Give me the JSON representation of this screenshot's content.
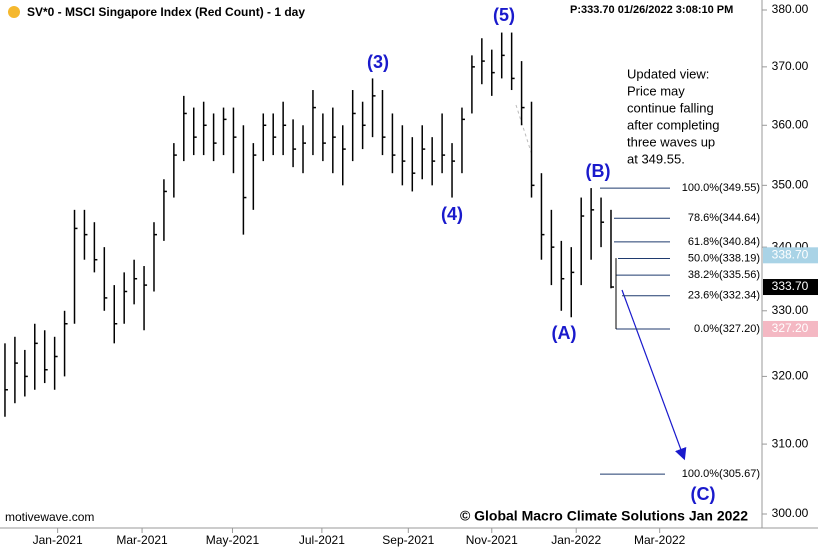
{
  "chart_data": {
    "type": "ohlc",
    "title": "SV*0 - MSCI Singapore Index (Red Count) - 1 day",
    "price_info": "P:333.70  01/26/2022 3:08:10 PM",
    "color": "#000000",
    "log_scale": true,
    "ylim": [
      300,
      380
    ],
    "yticks": [
      {
        "value": 380,
        "label": "380.00"
      },
      {
        "value": 370,
        "label": "370.00"
      },
      {
        "value": 360,
        "label": "360.00"
      },
      {
        "value": 350,
        "label": "350.00"
      },
      {
        "value": 340,
        "label": "340.00"
      },
      {
        "value": 330,
        "label": "330.00"
      },
      {
        "value": 320,
        "label": "320.00"
      },
      {
        "value": 310,
        "label": "310.00"
      },
      {
        "value": 300,
        "label": "300.00"
      }
    ],
    "xlim": [
      0,
      76.7
    ],
    "xticks": [
      {
        "value": 5.8,
        "label": "Jan-2021"
      },
      {
        "value": 14.3,
        "label": "Mar-2021"
      },
      {
        "value": 23.4,
        "label": "May-2021"
      },
      {
        "value": 32.4,
        "label": "Jul-2021"
      },
      {
        "value": 41.1,
        "label": "Sep-2021"
      },
      {
        "value": 49.5,
        "label": "Nov-2021"
      },
      {
        "value": 58.0,
        "label": "Jan-2022"
      },
      {
        "value": 66.4,
        "label": "Mar-2022"
      }
    ],
    "high": [
      325,
      326,
      324,
      328,
      327,
      326,
      330,
      346,
      346,
      344,
      340,
      334,
      336,
      338,
      337,
      344,
      351,
      357,
      365,
      363,
      364,
      362,
      363,
      363,
      360,
      357,
      362,
      362,
      364,
      361,
      360,
      366,
      362,
      363,
      360,
      366,
      364,
      368,
      366,
      362,
      360,
      358,
      360,
      358,
      362,
      357,
      363,
      372,
      375,
      373,
      376,
      376,
      371,
      364,
      352,
      346,
      341,
      340,
      348,
      349.55,
      348,
      346
    ],
    "low": [
      314,
      316,
      317,
      318,
      319,
      318,
      320,
      328,
      338,
      336,
      330,
      325,
      328,
      331,
      327,
      333,
      341,
      348,
      354,
      355,
      355,
      354,
      355,
      352,
      342,
      346,
      354,
      355,
      355,
      353,
      352,
      355,
      354,
      352,
      350,
      354,
      356,
      358,
      355,
      352,
      350,
      349,
      351,
      350,
      352,
      348,
      352,
      362,
      367,
      365,
      368,
      366,
      360,
      348,
      338,
      334,
      330,
      329,
      334,
      338,
      340,
      333.5
    ],
    "close": [
      318,
      322,
      320,
      325,
      321,
      323,
      328,
      343,
      342,
      338,
      332,
      328,
      333,
      335,
      334,
      342,
      349,
      355,
      362,
      358,
      360,
      357,
      361,
      358,
      348,
      355,
      360,
      358,
      360,
      356,
      357,
      363,
      357,
      358,
      356,
      362,
      360,
      365,
      358,
      355,
      354,
      352,
      356,
      354,
      355,
      354,
      361,
      370,
      371,
      369,
      372,
      368,
      363,
      350,
      342,
      340,
      335,
      336,
      345,
      346,
      344,
      333.7
    ],
    "wave_labels": [
      "(3)",
      "(4)",
      "(5)",
      "(A)",
      "(B)",
      "(C)"
    ],
    "fib_levels": [
      {
        "value": 349.55,
        "label": "100.0%(349.55)"
      },
      {
        "value": 344.64,
        "label": "78.6%(344.64)"
      },
      {
        "value": 340.84,
        "label": "61.8%(340.84)"
      },
      {
        "value": 338.19,
        "label": "50.0%(338.19)"
      },
      {
        "value": 335.56,
        "label": "38.2%(335.56)"
      },
      {
        "value": 332.34,
        "label": "23.6%(332.34)"
      },
      {
        "value": 327.2,
        "label": "0.0%(327.20)"
      }
    ],
    "projection": {
      "value": 305.67,
      "label": "100.0%(305.67)"
    },
    "price_markers": [
      {
        "value": 338.7,
        "label": "338.70",
        "color": "#a9d3e6"
      },
      {
        "value": 333.7,
        "label": "333.70",
        "color": "#000000"
      },
      {
        "value": 327.2,
        "label": "327.20",
        "color": "#f4b8c3"
      }
    ],
    "note": [
      "Updated view:",
      "Price may",
      "continue falling",
      "after completing",
      "three waves up",
      "at 349.55."
    ],
    "source": "motivewave.com",
    "copyright": "© Global Macro Climate Solutions Jan 2022"
  }
}
